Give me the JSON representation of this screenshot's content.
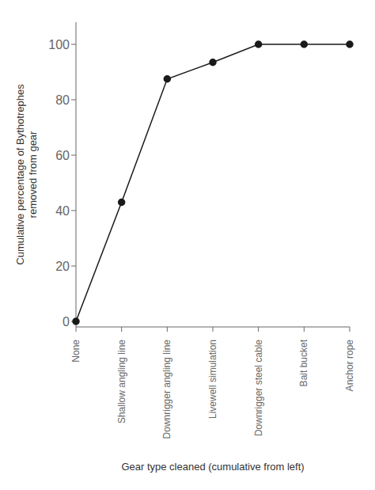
{
  "chart_data": {
    "type": "line",
    "categories": [
      "None",
      "Shallow angling line",
      "Downrigger angling line",
      "Livewell simulation",
      "Downrigger steel cable",
      "Bait bucket",
      "Anchor rope"
    ],
    "values": [
      0,
      43,
      87.5,
      93.5,
      100,
      100,
      100
    ],
    "xlabel": "Gear type cleaned (cumulative from left)",
    "ylabel": "Cumulative percentage of Bythotrephes\nremoved from gear",
    "ylim": [
      -2,
      108
    ],
    "yticks": [
      0,
      20,
      40,
      60,
      80,
      100
    ],
    "color": "#1a1a1a",
    "marker": "circle",
    "grid": false
  }
}
